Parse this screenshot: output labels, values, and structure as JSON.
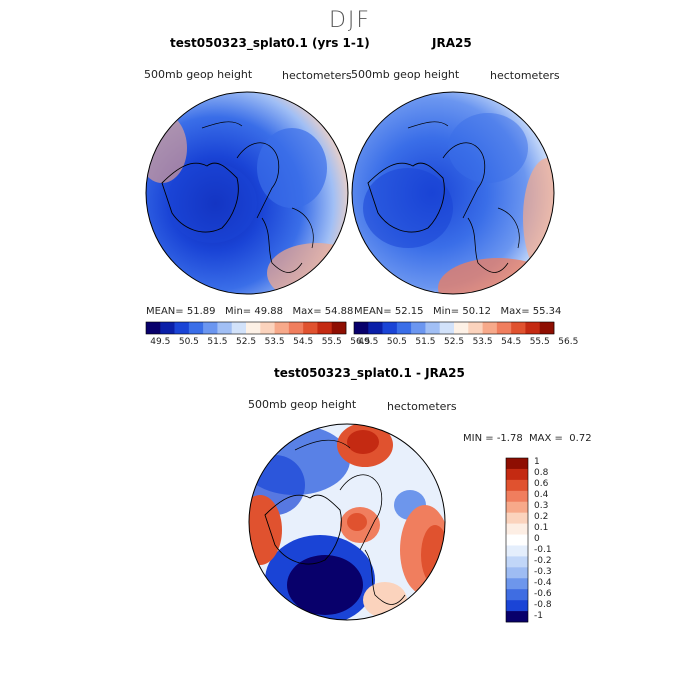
{
  "title": "DJF",
  "panels": [
    {
      "title": "test050323_splat0.1 (yrs 1-1)",
      "variable": "500mb geop height",
      "units": "hectometers",
      "mean_label": "MEAN=",
      "mean": "51.89",
      "min_label": "Min=",
      "min": "49.88",
      "max_label": "Max=",
      "max": "54.88"
    },
    {
      "title": "JRA25",
      "variable": "500mb geop height",
      "units": "hectometers",
      "mean_label": "MEAN=",
      "mean": "52.15",
      "min_label": "Min=",
      "min": "50.12",
      "max_label": "Max=",
      "max": "55.34"
    },
    {
      "title": "test050323_splat0.1 - JRA25",
      "variable": "500mb geop height",
      "units": "hectometers",
      "min_label": "MIN =",
      "min": "-1.78",
      "max_label": "MAX =",
      "max": "0.72"
    }
  ],
  "colorbar_top": {
    "labels": [
      "49.5",
      "50.5",
      "51.5",
      "52.5",
      "53.5",
      "54.5",
      "55.5",
      "56.5"
    ],
    "colors": [
      "#08006b",
      "#0a1fa8",
      "#1a44d6",
      "#3a6ee8",
      "#6b96f0",
      "#a1bff5",
      "#d2e2fa",
      "#fdf1e6",
      "#fbd3bd",
      "#f7a98a",
      "#f07e5e",
      "#e0522f",
      "#c42a12",
      "#8e0e02"
    ]
  },
  "colorbar_diff": {
    "labels": [
      "1",
      "0.8",
      "0.6",
      "0.4",
      "0.3",
      "0.2",
      "0.1",
      "0",
      "-0.1",
      "-0.2",
      "-0.3",
      "-0.4",
      "-0.6",
      "-0.8",
      "-1"
    ],
    "colors": [
      "#8e0e02",
      "#c42a12",
      "#e0522f",
      "#f07e5e",
      "#f7a98a",
      "#fbd3bd",
      "#fdeee4",
      "#ffffff",
      "#e4eefc",
      "#c1d6f8",
      "#9ebcf3",
      "#6d96ec",
      "#3f6de2",
      "#1a44d6",
      "#08006b"
    ]
  }
}
